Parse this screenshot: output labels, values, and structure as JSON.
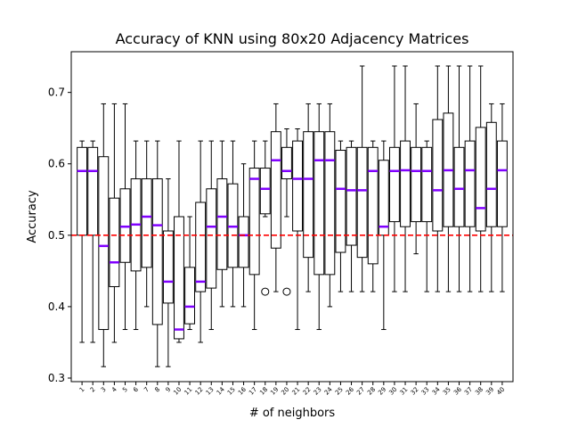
{
  "chart_data": {
    "type": "box",
    "title": "Accuracy of KNN using 80x20 Adjacency Matrices",
    "xlabel": "# of neighbors",
    "ylabel": "Accuracy",
    "ylim": [
      0.295,
      0.757
    ],
    "yticks": [
      0.3,
      0.4,
      0.5,
      0.6,
      0.7
    ],
    "ytick_labels": [
      "0.3",
      "0.4",
      "0.5",
      "0.6",
      "0.7"
    ],
    "grid": false,
    "reference_line": {
      "y": 0.5,
      "color": "#ff0000",
      "style": "dashed"
    },
    "box_color": "#000000",
    "median_color": "#8000ff",
    "categories": [
      "1",
      "2",
      "3",
      "4",
      "5",
      "6",
      "7",
      "8",
      "9",
      "10",
      "11",
      "12",
      "13",
      "14",
      "15",
      "16",
      "17",
      "18",
      "19",
      "20",
      "21",
      "22",
      "23",
      "24",
      "25",
      "26",
      "27",
      "28",
      "29",
      "30",
      "31",
      "32",
      "33",
      "34",
      "35",
      "36",
      "37",
      "38",
      "39",
      "40"
    ],
    "boxes": [
      {
        "whislo": 0.35,
        "q1": 0.5,
        "med": 0.59,
        "q3": 0.623,
        "whishi": 0.632,
        "fliers": []
      },
      {
        "whislo": 0.35,
        "q1": 0.5,
        "med": 0.59,
        "q3": 0.623,
        "whishi": 0.632,
        "fliers": []
      },
      {
        "whislo": 0.316,
        "q1": 0.368,
        "med": 0.485,
        "q3": 0.61,
        "whishi": 0.684,
        "fliers": []
      },
      {
        "whislo": 0.35,
        "q1": 0.428,
        "med": 0.462,
        "q3": 0.552,
        "whishi": 0.684,
        "fliers": []
      },
      {
        "whislo": 0.368,
        "q1": 0.462,
        "med": 0.512,
        "q3": 0.565,
        "whishi": 0.684,
        "fliers": []
      },
      {
        "whislo": 0.368,
        "q1": 0.45,
        "med": 0.515,
        "q3": 0.579,
        "whishi": 0.632,
        "fliers": []
      },
      {
        "whislo": 0.4,
        "q1": 0.455,
        "med": 0.526,
        "q3": 0.579,
        "whishi": 0.632,
        "fliers": []
      },
      {
        "whislo": 0.316,
        "q1": 0.375,
        "med": 0.514,
        "q3": 0.579,
        "whishi": 0.632,
        "fliers": []
      },
      {
        "whislo": 0.316,
        "q1": 0.405,
        "med": 0.435,
        "q3": 0.506,
        "whishi": 0.579,
        "fliers": []
      },
      {
        "whislo": 0.35,
        "q1": 0.355,
        "med": 0.368,
        "q3": 0.526,
        "whishi": 0.632,
        "fliers": []
      },
      {
        "whislo": 0.368,
        "q1": 0.376,
        "med": 0.4,
        "q3": 0.455,
        "whishi": 0.526,
        "fliers": []
      },
      {
        "whislo": 0.35,
        "q1": 0.421,
        "med": 0.435,
        "q3": 0.546,
        "whishi": 0.632,
        "fliers": []
      },
      {
        "whislo": 0.368,
        "q1": 0.426,
        "med": 0.512,
        "q3": 0.565,
        "whishi": 0.632,
        "fliers": []
      },
      {
        "whislo": 0.4,
        "q1": 0.452,
        "med": 0.526,
        "q3": 0.579,
        "whishi": 0.632,
        "fliers": []
      },
      {
        "whislo": 0.4,
        "q1": 0.455,
        "med": 0.512,
        "q3": 0.572,
        "whishi": 0.632,
        "fliers": []
      },
      {
        "whislo": 0.4,
        "q1": 0.455,
        "med": 0.5,
        "q3": 0.526,
        "whishi": 0.6,
        "fliers": []
      },
      {
        "whislo": 0.368,
        "q1": 0.445,
        "med": 0.579,
        "q3": 0.594,
        "whishi": 0.632,
        "fliers": []
      },
      {
        "whislo": 0.526,
        "q1": 0.53,
        "med": 0.565,
        "q3": 0.594,
        "whishi": 0.632,
        "fliers": [
          0.421
        ]
      },
      {
        "whislo": 0.421,
        "q1": 0.482,
        "med": 0.605,
        "q3": 0.645,
        "whishi": 0.684,
        "fliers": []
      },
      {
        "whislo": 0.526,
        "q1": 0.579,
        "med": 0.59,
        "q3": 0.623,
        "whishi": 0.649,
        "fliers": [
          0.421
        ]
      },
      {
        "whislo": 0.368,
        "q1": 0.506,
        "med": 0.579,
        "q3": 0.632,
        "whishi": 0.649,
        "fliers": []
      },
      {
        "whislo": 0.421,
        "q1": 0.469,
        "med": 0.579,
        "q3": 0.645,
        "whishi": 0.684,
        "fliers": []
      },
      {
        "whislo": 0.368,
        "q1": 0.445,
        "med": 0.605,
        "q3": 0.645,
        "whishi": 0.684,
        "fliers": []
      },
      {
        "whislo": 0.4,
        "q1": 0.445,
        "med": 0.605,
        "q3": 0.645,
        "whishi": 0.684,
        "fliers": []
      },
      {
        "whislo": 0.421,
        "q1": 0.476,
        "med": 0.565,
        "q3": 0.619,
        "whishi": 0.632,
        "fliers": []
      },
      {
        "whislo": 0.421,
        "q1": 0.486,
        "med": 0.563,
        "q3": 0.623,
        "whishi": 0.632,
        "fliers": []
      },
      {
        "whislo": 0.421,
        "q1": 0.469,
        "med": 0.563,
        "q3": 0.623,
        "whishi": 0.737,
        "fliers": []
      },
      {
        "whislo": 0.421,
        "q1": 0.46,
        "med": 0.59,
        "q3": 0.623,
        "whishi": 0.632,
        "fliers": []
      },
      {
        "whislo": 0.368,
        "q1": 0.5,
        "med": 0.512,
        "q3": 0.605,
        "whishi": 0.632,
        "fliers": []
      },
      {
        "whislo": 0.421,
        "q1": 0.519,
        "med": 0.59,
        "q3": 0.623,
        "whishi": 0.737,
        "fliers": []
      },
      {
        "whislo": 0.421,
        "q1": 0.512,
        "med": 0.591,
        "q3": 0.632,
        "whishi": 0.737,
        "fliers": []
      },
      {
        "whislo": 0.474,
        "q1": 0.519,
        "med": 0.59,
        "q3": 0.623,
        "whishi": 0.684,
        "fliers": []
      },
      {
        "whislo": 0.421,
        "q1": 0.519,
        "med": 0.59,
        "q3": 0.623,
        "whishi": 0.632,
        "fliers": []
      },
      {
        "whislo": 0.421,
        "q1": 0.506,
        "med": 0.563,
        "q3": 0.662,
        "whishi": 0.737,
        "fliers": []
      },
      {
        "whislo": 0.421,
        "q1": 0.512,
        "med": 0.591,
        "q3": 0.671,
        "whishi": 0.737,
        "fliers": []
      },
      {
        "whislo": 0.421,
        "q1": 0.512,
        "med": 0.565,
        "q3": 0.623,
        "whishi": 0.737,
        "fliers": []
      },
      {
        "whislo": 0.421,
        "q1": 0.512,
        "med": 0.591,
        "q3": 0.632,
        "whishi": 0.737,
        "fliers": []
      },
      {
        "whislo": 0.421,
        "q1": 0.506,
        "med": 0.538,
        "q3": 0.651,
        "whishi": 0.737,
        "fliers": []
      },
      {
        "whislo": 0.421,
        "q1": 0.512,
        "med": 0.565,
        "q3": 0.658,
        "whishi": 0.684,
        "fliers": []
      },
      {
        "whislo": 0.421,
        "q1": 0.512,
        "med": 0.591,
        "q3": 0.632,
        "whishi": 0.684,
        "fliers": []
      }
    ]
  }
}
